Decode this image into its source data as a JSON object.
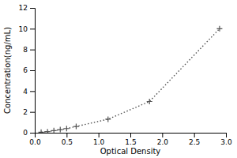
{
  "chart_data": {
    "type": "line",
    "x": [
      0.1,
      0.2,
      0.3,
      0.4,
      0.5,
      0.65,
      1.15,
      1.8,
      2.9
    ],
    "values": [
      0.05,
      0.1,
      0.2,
      0.3,
      0.4,
      0.6,
      1.3,
      3.0,
      10.0
    ],
    "xlabel": "Optical Density",
    "ylabel": "Concentration(ng/mL)",
    "xlim": [
      0,
      3
    ],
    "ylim": [
      0,
      12
    ],
    "xticks": [
      {
        "value": 0,
        "label": "0.0"
      },
      {
        "value": 0.5,
        "label": "0.5"
      },
      {
        "value": 1,
        "label": "1.0"
      },
      {
        "value": 1.5,
        "label": "1.5"
      },
      {
        "value": 2,
        "label": "2.0"
      },
      {
        "value": 2.5,
        "label": "2.5"
      },
      {
        "value": 3,
        "label": "3.0"
      }
    ],
    "yticks": [
      0,
      2,
      4,
      6,
      8,
      10,
      12
    ],
    "color": "#555555",
    "marker": "plus",
    "line_style": "dotted"
  }
}
